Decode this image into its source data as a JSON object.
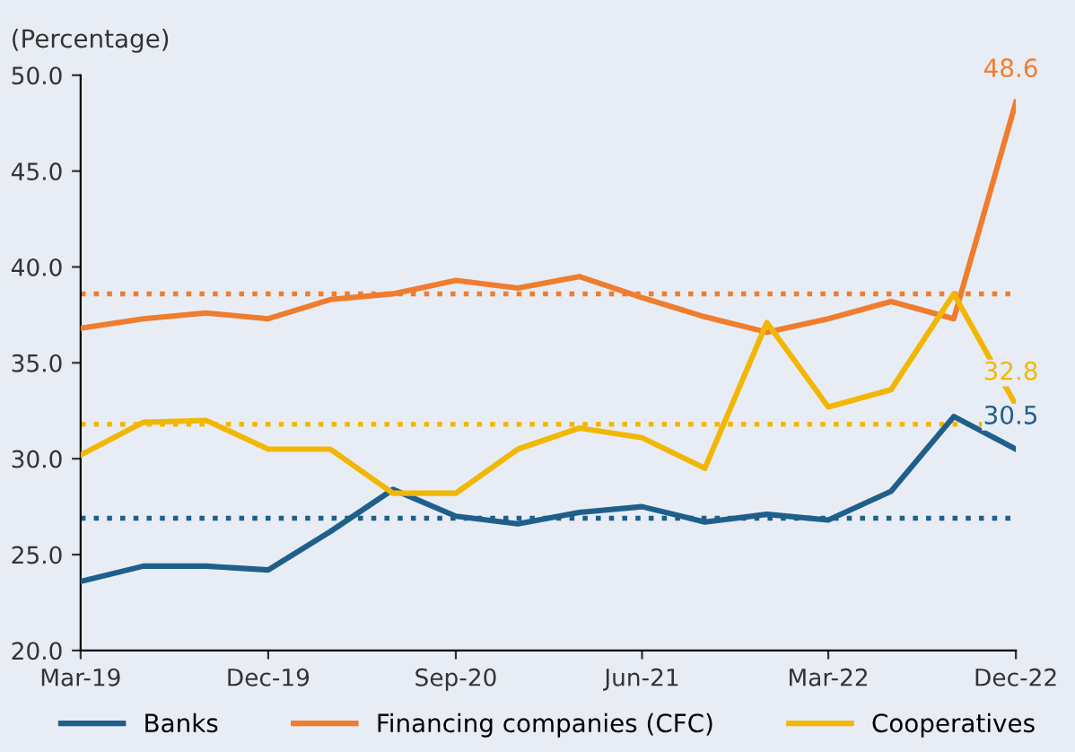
{
  "chart_data": {
    "type": "line",
    "ylabel": "(Percentage)",
    "x": [
      "2019-03",
      "2019-06",
      "2019-09",
      "2019-12",
      "2020-03",
      "2020-06",
      "2020-09",
      "2020-12",
      "2021-03",
      "2021-06",
      "2021-09",
      "2021-12",
      "2022-03",
      "2022-06",
      "2022-09",
      "2022-12"
    ],
    "series": [
      {
        "name": "Banks",
        "color": "#1f5f8b",
        "values": [
          23.6,
          24.4,
          24.4,
          24.2,
          26.2,
          28.4,
          27.0,
          26.6,
          27.2,
          27.5,
          26.7,
          27.1,
          26.8,
          28.3,
          32.2,
          30.5
        ],
        "value_labels": [
          null,
          null,
          null,
          null,
          null,
          null,
          null,
          null,
          null,
          null,
          null,
          null,
          null,
          null,
          null,
          "30.5"
        ]
      },
      {
        "name": "Financing companies (CFC)",
        "color": "#ef7d2d",
        "values": [
          36.8,
          37.3,
          37.6,
          37.3,
          38.3,
          38.6,
          39.3,
          38.9,
          39.5,
          38.4,
          37.4,
          36.6,
          37.3,
          38.2,
          37.3,
          48.6
        ],
        "value_labels": [
          null,
          null,
          null,
          null,
          null,
          null,
          null,
          null,
          null,
          null,
          null,
          null,
          null,
          null,
          null,
          "48.6"
        ]
      },
      {
        "name": "Cooperatives",
        "color": "#f2b705",
        "values": [
          30.2,
          31.9,
          32.0,
          30.5,
          30.5,
          28.2,
          28.2,
          30.5,
          31.6,
          31.1,
          29.5,
          37.1,
          32.7,
          33.6,
          38.6,
          32.8
        ],
        "value_labels": [
          null,
          null,
          null,
          null,
          null,
          null,
          null,
          null,
          null,
          null,
          null,
          null,
          null,
          null,
          null,
          "32.8"
        ]
      }
    ],
    "ref_lines": [
      {
        "axis": "y",
        "value": 26.9,
        "color": "#1f5f8b",
        "line_style": "dotted"
      },
      {
        "axis": "y",
        "value": 38.6,
        "color": "#ef7d2d",
        "line_style": "dotted"
      },
      {
        "axis": "y",
        "value": 31.8,
        "color": "#f2b705",
        "line_style": "dotted"
      }
    ],
    "xlim": [
      "2019-03",
      "2022-12"
    ],
    "xticks": [
      {
        "value": "2019-03",
        "label": "Mar-19"
      },
      {
        "value": "2019-12",
        "label": "Dec-19"
      },
      {
        "value": "2020-09",
        "label": "Sep-20"
      },
      {
        "value": "2021-06",
        "label": "Jun-21"
      },
      {
        "value": "2022-03",
        "label": "Mar-22"
      },
      {
        "value": "2022-12",
        "label": "Dec-22"
      }
    ],
    "ylim": [
      20,
      50
    ],
    "yticks": [
      {
        "value": 20,
        "label": "20.0"
      },
      {
        "value": 25,
        "label": "25.0"
      },
      {
        "value": 30,
        "label": "30.0"
      },
      {
        "value": 35,
        "label": "35.0"
      },
      {
        "value": 40,
        "label": "40.0"
      },
      {
        "value": 45,
        "label": "45.0"
      },
      {
        "value": 50,
        "label": "50.0"
      }
    ],
    "grid": false,
    "legend": "bottom",
    "marker": "none",
    "line_style": "solid"
  }
}
